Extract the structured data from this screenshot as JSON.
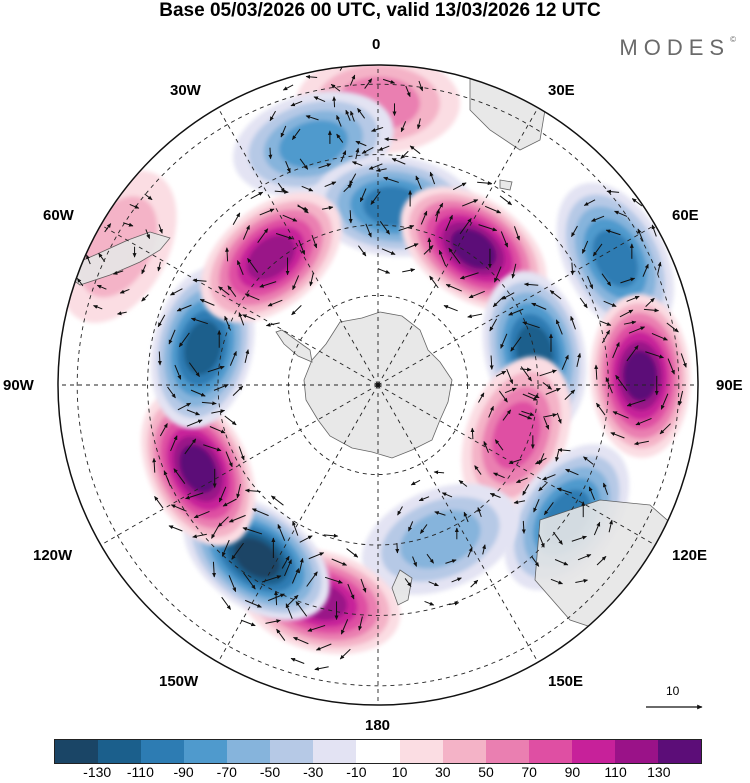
{
  "title": "Base 05/03/2026 00 UTC, valid 13/03/2026 12 UTC",
  "brand": "MODES",
  "brand_mark": "©",
  "longitude_labels": {
    "lon_0": "0",
    "lon_30e": "30E",
    "lon_60e": "60E",
    "lon_90e": "90E",
    "lon_120e": "120E",
    "lon_150e": "150E",
    "lon_180": "180",
    "lon_150w": "150W",
    "lon_120w": "120W",
    "lon_90w": "90W",
    "lon_60w": "60W",
    "lon_30w": "30W"
  },
  "vector_scale_label": "10",
  "colorbar": {
    "colors": [
      "#1a4566",
      "#1b5f8c",
      "#2d7cb3",
      "#4f9acd",
      "#86b4dc",
      "#b6c9e6",
      "#e3e3f3",
      "#ffffff",
      "#fbdde3",
      "#f4b3c7",
      "#ea7fb1",
      "#df4fa3",
      "#c7219a",
      "#9a1288",
      "#5c0d78"
    ],
    "tick_labels": [
      "-130",
      "-110",
      "-90",
      "-70",
      "-50",
      "-30",
      "-10",
      "10",
      "30",
      "50",
      "70",
      "90",
      "110",
      "130"
    ]
  },
  "anomaly_centers": [
    {
      "name": "pos-0",
      "lon": 0,
      "value": 45
    },
    {
      "name": "neg-15w",
      "lon": -15,
      "value": -55
    },
    {
      "name": "neg-5e",
      "lon": 5,
      "value": -85
    },
    {
      "name": "pos-35e",
      "lon": 35,
      "value": 120
    },
    {
      "name": "neg-60e",
      "lon": 62,
      "value": -75
    },
    {
      "name": "neg-78e",
      "lon": 78,
      "value": -105
    },
    {
      "name": "pos-85e",
      "lon": 88,
      "value": 120
    },
    {
      "name": "pos-110e",
      "lon": 110,
      "value": 55
    },
    {
      "name": "neg-125e",
      "lon": 125,
      "value": -80
    },
    {
      "name": "neg-158e",
      "lon": 158,
      "value": -35
    },
    {
      "name": "pos-165w",
      "lon": -165,
      "value": 110
    },
    {
      "name": "neg-145w",
      "lon": -145,
      "value": -130
    },
    {
      "name": "pos-115w",
      "lon": -115,
      "value": 115
    },
    {
      "name": "neg-78w",
      "lon": -78,
      "value": -100
    },
    {
      "name": "pos-40w",
      "lon": -40,
      "value": 100
    },
    {
      "name": "pos-60w",
      "lon": -62,
      "value": 25
    }
  ]
}
